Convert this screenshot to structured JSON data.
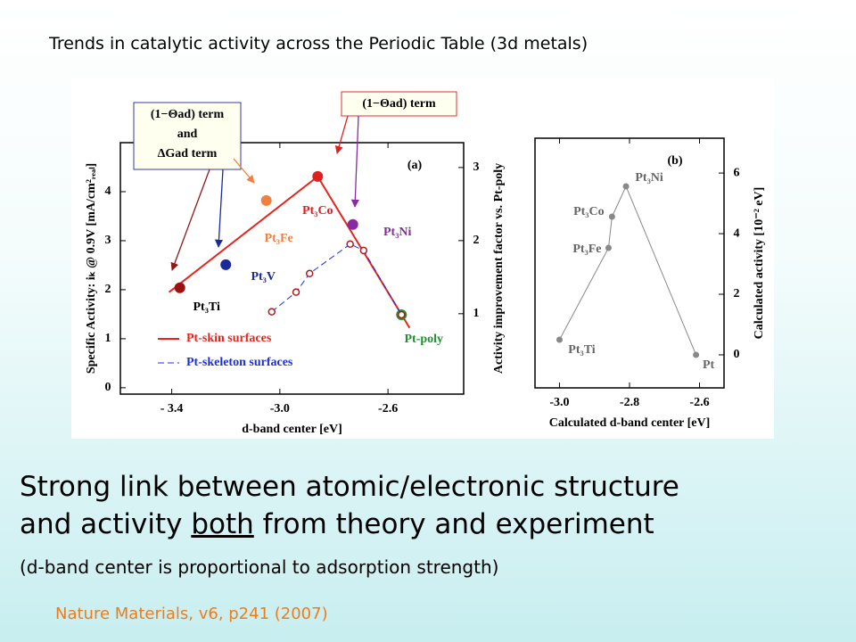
{
  "slide": {
    "title": "Trends in catalytic activity across the Periodic Table (3d metals)",
    "statement_line1": "Strong link between atomic/electronic structure",
    "statement_line2_start": "and activity",
    "statement_line2_underlined": "both",
    "statement_line2_end": "from theory and experiment",
    "note": "(d-band center is proportional to adsorption strength)",
    "citation": "Nature Materials, v6, p241 (2007)"
  },
  "chart_data": [
    {
      "type": "scatter",
      "panel_label": "(a)",
      "x_label": "d-band center [eV]",
      "y_label": "Specific Activity: iₖ @ 0.9V [mA/cm²ᵣₑₐₗ]",
      "y2_label": "Activity improvement factor vs. Pt-poly",
      "xlim": [
        -3.59,
        -2.32
      ],
      "ylim": [
        -0.13,
        5.0
      ],
      "y2lim": [
        -0.1,
        3.34
      ],
      "xticks": [
        {
          "value": -3.4,
          "label": "- 3.4"
        },
        {
          "value": -3.0,
          "label": "-3.0"
        },
        -2.6
      ],
      "yticks": [
        0,
        1,
        2,
        3,
        4
      ],
      "y2ticks": [
        1,
        2,
        3
      ],
      "legend_loc": "lower left",
      "series": [
        {
          "name": "Pt-skin surfaces",
          "color": "#e8241c",
          "line_style": "solid",
          "marker": "filled",
          "x": [
            -3.37,
            -3.2,
            -3.05,
            -2.86,
            -2.73,
            -2.55
          ],
          "values": [
            2.04,
            2.51,
            3.82,
            4.31,
            3.33,
            1.49
          ],
          "marker_colors": [
            "#9c1010",
            "#1a2a9a",
            "#f08040",
            "#e02020",
            "#8a2aa0",
            "#209030"
          ],
          "point_labels": [
            "Pt₃Ti",
            "Pt₃V",
            "Pt₃Fe",
            "Pt₃Co",
            "Pt₃Ni",
            "Pt-poly"
          ],
          "label_colors": [
            "#000000",
            "#1a2a9a",
            "#f08040",
            "#e02020",
            "#8a2aa0",
            "#209030"
          ],
          "fit_x": [
            -3.41,
            -2.86,
            -2.52
          ],
          "fit_values": [
            1.95,
            4.31,
            1.22
          ]
        },
        {
          "name": "Pt-skeleton surfaces",
          "color": "#1c2ee0",
          "line_style": "dashed",
          "marker": "open",
          "marker_color": "#b01c1c",
          "x": [
            -3.03,
            -2.94,
            -2.89,
            -2.74,
            -2.69,
            -2.55
          ],
          "values": [
            1.55,
            1.95,
            2.33,
            2.93,
            2.8,
            1.49
          ]
        }
      ],
      "annotations": [
        {
          "lines": [
            "(1−Θad) term",
            "and",
            "ΔGad term"
          ]
        },
        {
          "lines": [
            "(1−Θad) term"
          ]
        }
      ]
    },
    {
      "type": "line",
      "panel_label": "(b)",
      "x_label": "Calculated d-band center [eV]",
      "y_label": "Calculated activity [10⁻² eV]",
      "y_axis_side": "right",
      "xlim": [
        -3.07,
        -2.53
      ],
      "ylim": [
        -1.09,
        7.15
      ],
      "xticks": [
        {
          "value": -3.0,
          "label": "-3.0"
        },
        {
          "value": -2.8,
          "label": "-2.8"
        },
        -2.6
      ],
      "yticks": [
        0,
        2,
        4,
        6
      ],
      "series": [
        {
          "color": "#888888",
          "x": [
            -3.0,
            -2.86,
            -2.85,
            -2.81,
            -2.61
          ],
          "values": [
            0.5,
            3.53,
            4.56,
            5.56,
            0
          ],
          "point_labels": [
            "Pt₃Ti",
            "Pt₃Fe",
            "Pt₃Co",
            "Pt₃Ni",
            "Pt"
          ]
        }
      ]
    }
  ]
}
